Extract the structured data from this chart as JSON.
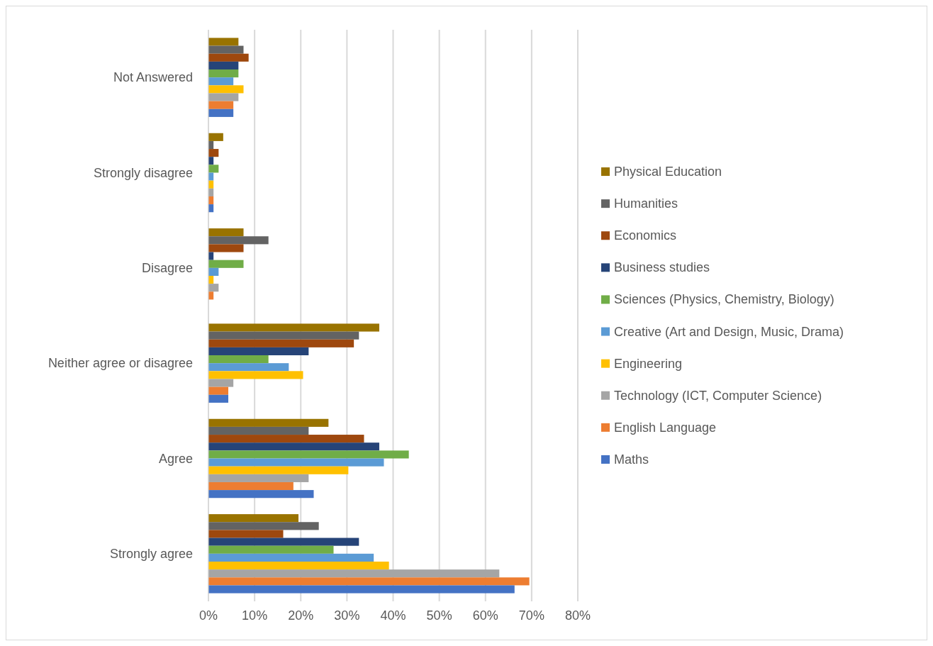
{
  "chart_data": {
    "type": "bar",
    "orientation": "horizontal",
    "categories": [
      "Not Answered",
      "Strongly disagree",
      "Disagree",
      "Neither agree or disagree",
      "Agree",
      "Strongly agree"
    ],
    "series": [
      {
        "name": "Physical Education",
        "color": "#997300",
        "values": [
          6.5,
          3.2,
          7.6,
          37.0,
          26.0,
          19.5
        ]
      },
      {
        "name": "Humanities",
        "color": "#636363",
        "values": [
          7.6,
          1.1,
          13.0,
          32.6,
          21.7,
          23.9
        ]
      },
      {
        "name": "Economics",
        "color": "#9e480e",
        "values": [
          8.7,
          2.2,
          7.6,
          31.5,
          33.7,
          16.2
        ]
      },
      {
        "name": "Business studies",
        "color": "#264478",
        "values": [
          6.5,
          1.1,
          1.1,
          21.7,
          37.0,
          32.6
        ]
      },
      {
        "name": "Sciences (Physics, Chemistry, Biology)",
        "color": "#70ad47",
        "values": [
          6.5,
          2.2,
          7.6,
          13.0,
          43.4,
          27.1
        ]
      },
      {
        "name": "Creative (Art and Design, Music, Drama)",
        "color": "#5b9bd5",
        "values": [
          5.4,
          1.1,
          2.2,
          17.4,
          38.0,
          35.8
        ]
      },
      {
        "name": "Engineering",
        "color": "#ffc000",
        "values": [
          7.6,
          1.1,
          1.1,
          20.5,
          30.3,
          39.1
        ]
      },
      {
        "name": "Technology (ICT, Computer Science)",
        "color": "#a5a5a5",
        "values": [
          6.5,
          1.1,
          2.2,
          5.4,
          21.7,
          63.0
        ]
      },
      {
        "name": "English Language",
        "color": "#ed7d31",
        "values": [
          5.4,
          1.1,
          1.1,
          4.3,
          18.4,
          69.5
        ]
      },
      {
        "name": "Maths",
        "color": "#4472c4",
        "values": [
          5.4,
          1.1,
          0,
          4.3,
          22.8,
          66.3
        ]
      }
    ],
    "xlim": [
      0,
      80
    ],
    "xticks": [
      {
        "value": 0,
        "label": "0%"
      },
      {
        "value": 10,
        "label": "10%"
      },
      {
        "value": 20,
        "label": "20%"
      },
      {
        "value": 30,
        "label": "30%"
      },
      {
        "value": 40,
        "label": "40%"
      },
      {
        "value": 50,
        "label": "50%"
      },
      {
        "value": 60,
        "label": "60%"
      },
      {
        "value": 70,
        "label": "70%"
      },
      {
        "value": 80,
        "label": "80%"
      }
    ],
    "grid": "x",
    "legend": "right"
  }
}
